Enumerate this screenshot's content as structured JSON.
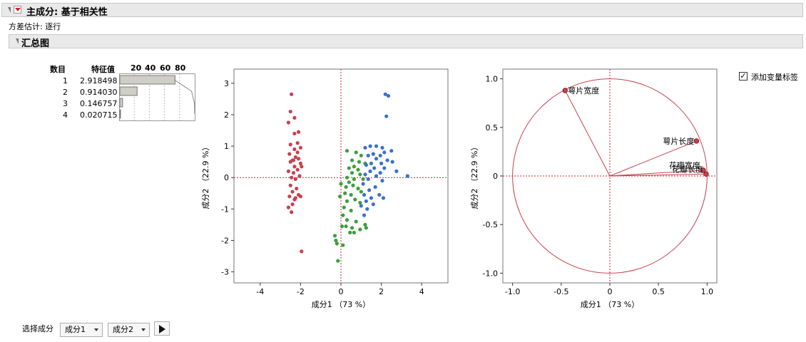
{
  "report": {
    "title": "主成分: 基于相关性",
    "estimation": "方差估计: 逐行",
    "summary_title": "汇总图"
  },
  "eigen_table": {
    "col_number": "数目",
    "col_eigenvalue": "特征值",
    "bar_scale": [
      "20",
      "40",
      "60",
      "80"
    ],
    "rows": [
      {
        "n": "1",
        "value": "2.918498",
        "percent": 73.0
      },
      {
        "n": "2",
        "value": "0.914030",
        "percent": 22.9
      },
      {
        "n": "3",
        "value": "0.146757",
        "percent": 3.7
      },
      {
        "n": "4",
        "value": "0.020715",
        "percent": 0.5
      }
    ],
    "cumulative_percent": [
      73.0,
      95.8,
      99.5,
      100.0
    ]
  },
  "chart_data": [
    {
      "type": "scatter",
      "title": "",
      "xlabel": "成分1 （73 %）",
      "ylabel": "成分2 （22.9 %）",
      "xlim": [
        -5.3,
        5.3
      ],
      "ylim": [
        -3.35,
        3.45
      ],
      "xticks": [
        "-4",
        "-2",
        "0",
        "2",
        "4"
      ],
      "xtick_values": [
        -4,
        -2,
        0,
        2,
        4
      ],
      "yticks": [
        "-3",
        "-2",
        "-1",
        "0",
        "1",
        "2",
        "3"
      ],
      "ytick_values": [
        -3,
        -2,
        -1,
        0,
        1,
        2,
        3
      ],
      "reference_lines": {
        "x": 0,
        "y": 0
      },
      "series": [
        {
          "color": "#c8404f",
          "points": [
            [
              -2.45,
              2.65
            ],
            [
              -2.5,
              2.1
            ],
            [
              -2.3,
              1.9
            ],
            [
              -2.6,
              1.75
            ],
            [
              -2.1,
              1.45
            ],
            [
              -2.3,
              1.4
            ],
            [
              -2.15,
              1.1
            ],
            [
              -2.5,
              1.05
            ],
            [
              -2.3,
              0.9
            ],
            [
              -2.0,
              0.95
            ],
            [
              -2.55,
              0.75
            ],
            [
              -2.25,
              0.65
            ],
            [
              -2.1,
              0.6
            ],
            [
              -2.4,
              0.55
            ],
            [
              -2.0,
              0.45
            ],
            [
              -2.5,
              0.5
            ],
            [
              -2.3,
              0.35
            ],
            [
              -1.95,
              0.35
            ],
            [
              -2.15,
              0.25
            ],
            [
              -2.6,
              0.2
            ],
            [
              -2.35,
              0.15
            ],
            [
              -2.05,
              0.05
            ],
            [
              -2.45,
              0.0
            ],
            [
              -2.25,
              -0.05
            ],
            [
              -2.5,
              -0.25
            ],
            [
              -2.2,
              -0.35
            ],
            [
              -2.4,
              -0.45
            ],
            [
              -2.1,
              -0.55
            ],
            [
              -2.55,
              -0.6
            ],
            [
              -2.3,
              -0.7
            ],
            [
              -2.6,
              -0.95
            ],
            [
              -2.4,
              -0.85
            ],
            [
              -2.45,
              -1.1
            ],
            [
              -2.0,
              -0.6
            ],
            [
              -2.25,
              -0.65
            ],
            [
              -1.95,
              -2.35
            ],
            [
              -2.35,
              0.55
            ],
            [
              -2.15,
              0.8
            ]
          ]
        },
        {
          "color": "#3aa03a",
          "points": [
            [
              0.3,
              0.85
            ],
            [
              0.75,
              0.8
            ],
            [
              1.0,
              0.7
            ],
            [
              0.55,
              0.55
            ],
            [
              0.9,
              0.5
            ],
            [
              1.2,
              0.45
            ],
            [
              0.65,
              0.35
            ],
            [
              0.4,
              0.3
            ],
            [
              0.85,
              0.25
            ],
            [
              0.55,
              0.15
            ],
            [
              0.95,
              0.1
            ],
            [
              0.3,
              0.0
            ],
            [
              0.65,
              -0.05
            ],
            [
              1.1,
              -0.05
            ],
            [
              0.4,
              -0.15
            ],
            [
              0.0,
              -0.2
            ],
            [
              0.25,
              -0.3
            ],
            [
              0.6,
              -0.25
            ],
            [
              0.85,
              -0.35
            ],
            [
              1.0,
              -0.45
            ],
            [
              0.2,
              -0.5
            ],
            [
              0.5,
              -0.55
            ],
            [
              -0.05,
              -0.6
            ],
            [
              0.7,
              -0.7
            ],
            [
              0.3,
              -0.75
            ],
            [
              0.95,
              -0.8
            ],
            [
              0.15,
              -0.95
            ],
            [
              0.5,
              -1.05
            ],
            [
              0.1,
              -1.2
            ],
            [
              0.3,
              -1.35
            ],
            [
              0.75,
              -1.4
            ],
            [
              0.05,
              -1.55
            ],
            [
              0.25,
              -1.55
            ],
            [
              0.55,
              -1.6
            ],
            [
              0.95,
              -1.65
            ],
            [
              0.45,
              -1.75
            ],
            [
              0.65,
              -1.75
            ],
            [
              -0.3,
              -1.85
            ],
            [
              -0.25,
              -2.0
            ],
            [
              -0.2,
              -2.1
            ],
            [
              0.1,
              -2.15
            ],
            [
              -0.15,
              -2.65
            ],
            [
              1.25,
              -1.6
            ],
            [
              1.2,
              -1.5
            ]
          ]
        },
        {
          "color": "#3c6fd0",
          "points": [
            [
              2.2,
              2.65
            ],
            [
              2.35,
              2.6
            ],
            [
              2.25,
              1.95
            ],
            [
              1.75,
              1.0
            ],
            [
              2.05,
              0.95
            ],
            [
              1.45,
              1.0
            ],
            [
              1.2,
              0.95
            ],
            [
              2.5,
              0.85
            ],
            [
              2.15,
              0.8
            ],
            [
              1.6,
              0.75
            ],
            [
              1.95,
              0.7
            ],
            [
              1.35,
              0.7
            ],
            [
              1.75,
              0.6
            ],
            [
              2.3,
              0.55
            ],
            [
              2.55,
              0.5
            ],
            [
              1.5,
              0.45
            ],
            [
              2.0,
              0.45
            ],
            [
              1.25,
              0.4
            ],
            [
              1.65,
              0.3
            ],
            [
              2.15,
              0.3
            ],
            [
              2.75,
              0.2
            ],
            [
              3.3,
              0.05
            ],
            [
              1.45,
              0.2
            ],
            [
              1.95,
              0.15
            ],
            [
              1.2,
              0.1
            ],
            [
              1.75,
              0.05
            ],
            [
              1.35,
              -0.05
            ],
            [
              2.05,
              -0.1
            ],
            [
              1.1,
              -0.2
            ],
            [
              1.7,
              -0.3
            ],
            [
              1.4,
              -0.4
            ],
            [
              1.15,
              -0.55
            ],
            [
              1.9,
              -0.55
            ],
            [
              1.5,
              -0.65
            ],
            [
              1.25,
              -0.75
            ],
            [
              1.0,
              -0.9
            ],
            [
              1.6,
              -0.85
            ],
            [
              1.3,
              -1.0
            ],
            [
              2.1,
              -0.65
            ],
            [
              1.15,
              -1.2
            ]
          ]
        }
      ]
    },
    {
      "type": "scatter",
      "title": "",
      "xlabel": "成分1 （73 %）",
      "ylabel": "成分2 （22.9 %）",
      "xlim": [
        -1.1,
        1.1
      ],
      "ylim": [
        -1.1,
        1.1
      ],
      "xticks": [
        "-1.0",
        "-0.5",
        "0",
        "0.5",
        "1.0"
      ],
      "xtick_values": [
        -1.0,
        -0.5,
        0,
        0.5,
        1.0
      ],
      "yticks": [
        "-1.0",
        "-0.5",
        "0",
        "0.5",
        "1.0"
      ],
      "ytick_values": [
        -1.0,
        -0.5,
        0,
        0.5,
        1.0
      ],
      "unit_circle": true,
      "reference_lines": {
        "x": 0,
        "y": 0
      },
      "loadings": [
        {
          "label": "萼片长度",
          "x": 0.89,
          "y": 0.36
        },
        {
          "label": "萼片宽度",
          "x": -0.46,
          "y": 0.88
        },
        {
          "label": "花瓣长度",
          "x": 0.99,
          "y": 0.02
        },
        {
          "label": "花瓣宽度",
          "x": 0.96,
          "y": 0.06
        }
      ]
    }
  ],
  "options": {
    "add_variable_labels": "添加变量标签",
    "add_variable_labels_checked": true
  },
  "component_select": {
    "label": "选择成分",
    "x_value": "成分1",
    "y_value": "成分2"
  },
  "colors": {
    "accent": "#c8404f",
    "header_bg": "#e9e9e9"
  }
}
